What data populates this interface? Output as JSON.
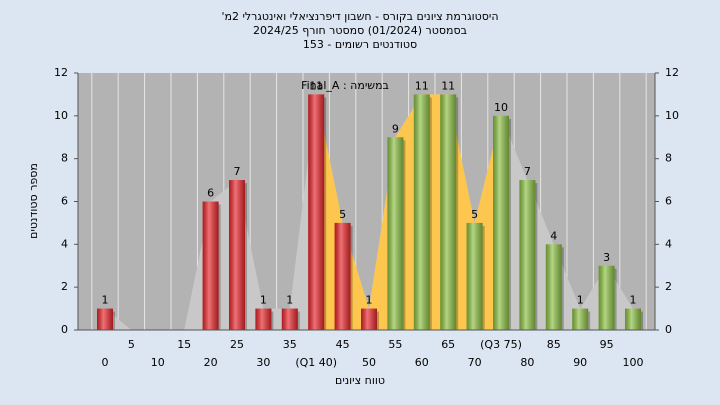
{
  "chart_data": {
    "type": "bar",
    "title": "היסטוגרמת ציונים בקורס - חשבון דיפרנציאלי ואינטגרלי 2מ'",
    "subtitle": "בסמסטר (01/2024) סמסטר חורף 2024/25",
    "subtitle2": "סטודנטים רשומים - 153",
    "annotation": "במשימה : Final_A",
    "x_label": "טווח ציונים",
    "y_label": "מספר סטודנטים",
    "categories": [
      "0",
      "5",
      "10",
      "15",
      "20",
      "25",
      "30",
      "35",
      "(Q1 40)",
      "45",
      "50",
      "55",
      "60",
      "65",
      "70",
      "(Q3 75)",
      "80",
      "85",
      "90",
      "95",
      "100"
    ],
    "values": [
      1,
      0,
      0,
      0,
      6,
      7,
      1,
      1,
      11,
      5,
      1,
      9,
      11,
      11,
      5,
      10,
      7,
      4,
      1,
      3,
      1
    ],
    "colors": [
      "#e8262b",
      "#e8262b",
      "#e8262b",
      "#e8262b",
      "#e8262b",
      "#e8262b",
      "#e8262b",
      "#e8262b",
      "#e8262b",
      "#e8262b",
      "#e8262b",
      "#8cc043",
      "#8cc043",
      "#8cc043",
      "#8cc043",
      "#8cc043",
      "#8cc043",
      "#8cc043",
      "#8cc043",
      "#8cc043",
      "#8cc043"
    ],
    "iqr_color": "#fdc74f",
    "area_color": "#c8c8c8",
    "ylim": [
      0,
      12
    ],
    "yticks": [
      0,
      2,
      4,
      6,
      8,
      10,
      12
    ],
    "y2lim": [
      0,
      12
    ],
    "y2ticks": [
      0,
      2,
      4,
      6,
      8,
      10,
      12
    ],
    "grid": true
  }
}
